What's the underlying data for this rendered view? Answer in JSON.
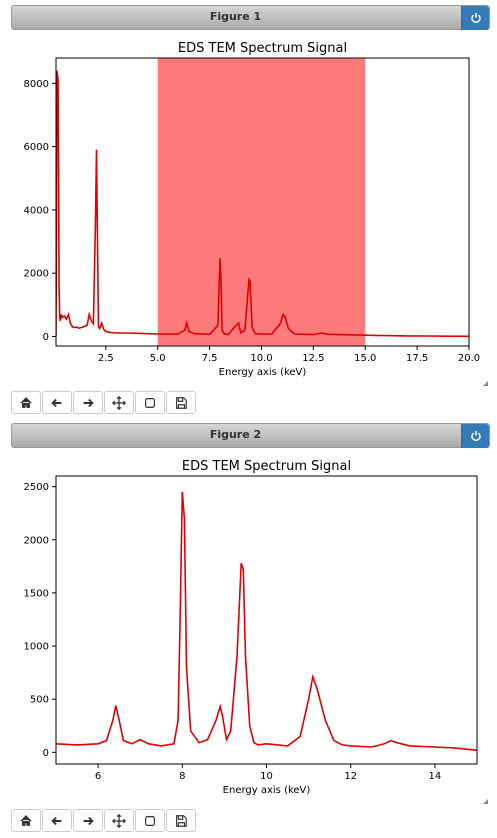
{
  "figures": [
    {
      "header_title": "Figure 1",
      "chart_data": {
        "type": "line",
        "title": "EDS TEM Spectrum Signal",
        "xlabel": "Energy axis (keV)",
        "ylabel": "",
        "xlim": [
          0.1,
          20.0
        ],
        "ylim": [
          -300,
          8800
        ],
        "xticks": [
          2.5,
          5.0,
          7.5,
          10.0,
          12.5,
          15.0,
          17.5,
          20.0
        ],
        "xtick_labels": [
          "2.5",
          "5.0",
          "7.5",
          "10.0",
          "12.5",
          "15.0",
          "17.5",
          "20.0"
        ],
        "yticks": [
          0,
          2000,
          4000,
          6000,
          8000
        ],
        "ytick_labels": [
          "0",
          "2000",
          "4000",
          "6000",
          "8000"
        ],
        "line_color": "#e00000",
        "span": {
          "from": 5.0,
          "to": 15.0,
          "color": "#ff7b7b"
        },
        "series": [
          {
            "x": [
              0.1,
              0.15,
              0.2,
              0.25,
              0.28,
              0.3,
              0.35,
              0.4,
              0.5,
              0.6,
              0.7,
              0.8,
              0.9,
              1.0,
              1.1,
              1.2,
              1.4,
              1.6,
              1.7,
              1.8,
              1.9,
              2.0,
              2.05,
              2.1,
              2.15,
              2.2,
              2.3,
              2.4,
              2.5,
              2.7,
              3.0,
              3.5,
              4.0,
              4.5,
              5.0,
              5.5,
              6.0,
              6.3,
              6.4,
              6.5,
              6.8,
              7.0,
              7.5,
              7.9,
              8.0,
              8.05,
              8.1,
              8.2,
              8.4,
              8.7,
              8.9,
              9.0,
              9.2,
              9.4,
              9.45,
              9.55,
              9.7,
              10.0,
              10.5,
              10.9,
              11.05,
              11.15,
              11.3,
              11.6,
              12.0,
              12.5,
              12.9,
              13.0,
              13.2,
              13.8,
              14.5,
              15.0,
              16.0,
              17.0,
              18.0,
              19.0,
              20.0
            ],
            "y": [
              0,
              8400,
              8100,
              1500,
              600,
              500,
              700,
              600,
              650,
              550,
              700,
              400,
              300,
              280,
              300,
              260,
              300,
              350,
              700,
              500,
              400,
              3500,
              5900,
              3000,
              300,
              250,
              420,
              220,
              160,
              130,
              110,
              110,
              100,
              90,
              80,
              75,
              80,
              200,
              430,
              160,
              80,
              90,
              70,
              350,
              2480,
              1800,
              200,
              90,
              60,
              300,
              420,
              120,
              200,
              1800,
              1750,
              300,
              90,
              80,
              80,
              400,
              700,
              600,
              250,
              80,
              70,
              60,
              110,
              100,
              70,
              60,
              50,
              40,
              30,
              20,
              15,
              10,
              5
            ]
          }
        ]
      },
      "toolbar": [
        "home-icon",
        "back-arrow-icon",
        "forward-arrow-icon",
        "pan-icon",
        "zoom-rect-icon",
        "save-icon"
      ]
    },
    {
      "header_title": "Figure 2",
      "chart_data": {
        "type": "line",
        "title": "EDS TEM Spectrum Signal",
        "xlabel": "Energy axis (keV)",
        "ylabel": "",
        "xlim": [
          5.0,
          15.0
        ],
        "ylim": [
          -110,
          2600
        ],
        "xticks": [
          6,
          8,
          10,
          12,
          14
        ],
        "xtick_labels": [
          "6",
          "8",
          "10",
          "12",
          "14"
        ],
        "yticks": [
          0,
          500,
          1000,
          1500,
          2000,
          2500
        ],
        "ytick_labels": [
          "0",
          "500",
          "1000",
          "1500",
          "2000",
          "2500"
        ],
        "line_color": "#e00000",
        "series": [
          {
            "x": [
              5.0,
              5.5,
              6.0,
              6.2,
              6.35,
              6.42,
              6.5,
              6.6,
              6.8,
              7.0,
              7.2,
              7.5,
              7.8,
              7.9,
              7.95,
              8.0,
              8.05,
              8.1,
              8.2,
              8.4,
              8.6,
              8.8,
              8.9,
              8.95,
              9.05,
              9.15,
              9.3,
              9.4,
              9.45,
              9.5,
              9.6,
              9.7,
              9.8,
              10.0,
              10.5,
              10.8,
              11.0,
              11.1,
              11.2,
              11.4,
              11.6,
              11.8,
              12.0,
              12.5,
              12.8,
              12.95,
              13.1,
              13.4,
              14.0,
              14.5,
              15.0
            ],
            "y": [
              80,
              70,
              80,
              110,
              300,
              440,
              300,
              110,
              80,
              120,
              80,
              60,
              80,
              300,
              1300,
              2450,
              2200,
              800,
              200,
              90,
              120,
              300,
              430,
              350,
              120,
              200,
              900,
              1780,
              1720,
              900,
              250,
              90,
              70,
              80,
              60,
              150,
              500,
              710,
              600,
              300,
              110,
              70,
              60,
              50,
              80,
              110,
              90,
              60,
              50,
              40,
              20
            ]
          }
        ]
      },
      "toolbar": [
        "home-icon",
        "back-arrow-icon",
        "forward-arrow-icon",
        "pan-icon",
        "zoom-rect-icon",
        "save-icon"
      ]
    }
  ]
}
